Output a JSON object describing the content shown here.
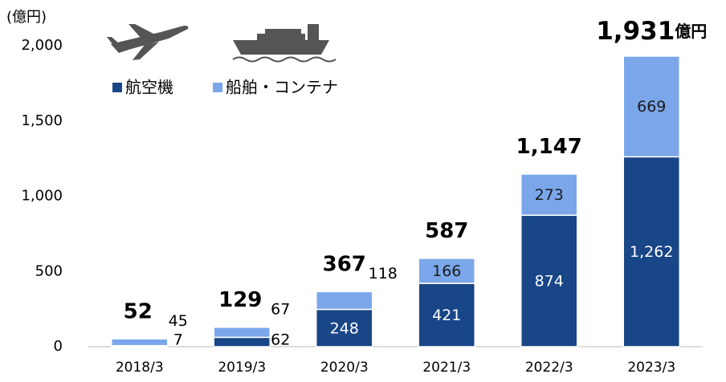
{
  "chart_data": {
    "type": "stacked_bar",
    "y_unit": "(億円)",
    "categories": [
      "2018/3",
      "2019/3",
      "2020/3",
      "2021/3",
      "2022/3",
      "2023/3"
    ],
    "series": [
      {
        "name": "航空機",
        "color": "#184687",
        "values": [
          7,
          62,
          248,
          421,
          874,
          1262
        ],
        "value_labels": [
          "7",
          "62",
          "248",
          "421",
          "874",
          "1,262"
        ]
      },
      {
        "name": "船舶・コンテナ",
        "color": "#7ba7ea",
        "values": [
          45,
          67,
          118,
          166,
          273,
          669
        ]
      }
    ],
    "totals": {
      "values": [
        52,
        129,
        367,
        587,
        1147,
        1931
      ],
      "value_labels": [
        "52",
        "129",
        "367",
        "587",
        "1,147",
        "1,931"
      ],
      "unit": "億円"
    },
    "ylim": [
      0,
      2000
    ],
    "yticks": [
      0,
      500,
      {
        "value": 1000,
        "label": "1,000"
      },
      {
        "value": 1500,
        "label": "1,500"
      },
      {
        "value": 2000,
        "label": "2,000"
      }
    ]
  }
}
